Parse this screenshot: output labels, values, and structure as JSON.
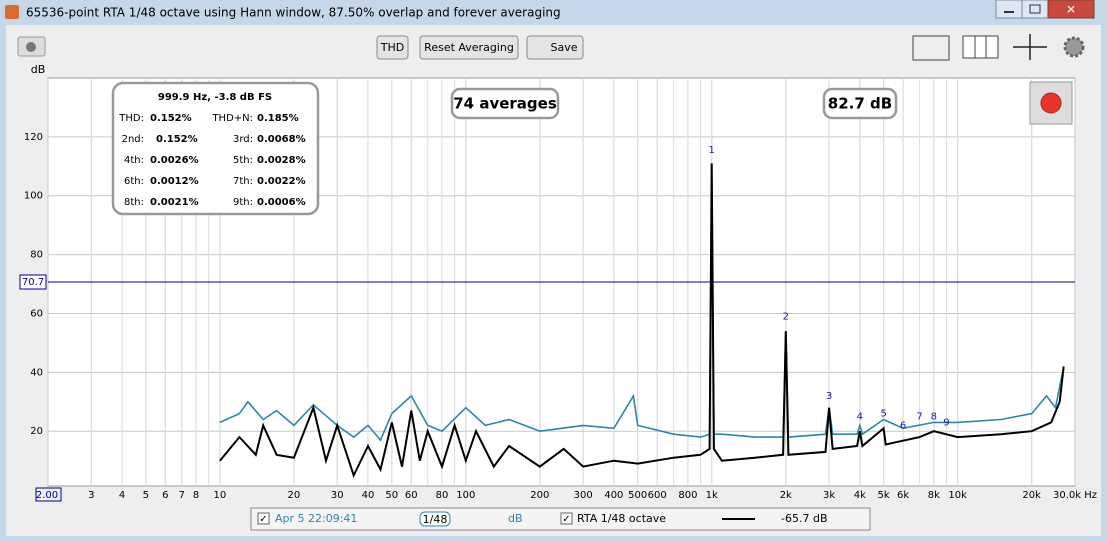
{
  "window": {
    "title": "65536-point RTA 1/48 octave using Hann window, 87.50% overlap and forever averaging"
  },
  "toolbar": {
    "buttons": [
      "THD",
      "Reset Averaging",
      "Save"
    ]
  },
  "overlays": {
    "thd_box": {
      "header": "999.9 Hz, -3.8 dB FS",
      "rows": [
        [
          "THD:",
          "0.152%",
          "THD+N:",
          "0.185%"
        ],
        [
          "2nd:",
          "0.152%",
          "3rd:",
          "0.0068%"
        ],
        [
          "4th:",
          "0.0026%",
          "5th:",
          "0.0028%"
        ],
        [
          "6th:",
          "0.0012%",
          "7th:",
          "0.0022%"
        ],
        [
          "8th:",
          "0.0021%",
          "9th:",
          "0.0006%"
        ]
      ]
    },
    "averages": "74 averages",
    "level": "82.7 dB"
  },
  "legend_bar": {
    "scale": "1/48",
    "unit": "dB",
    "reading": "-65.7 dB"
  },
  "chart_data": {
    "type": "line",
    "y_label": "dB",
    "log_x": true,
    "grid": true,
    "xlim": [
      2,
      30000
    ],
    "ylim": [
      1.4,
      140
    ],
    "xticks": [
      {
        "value": 2,
        "label": "2.00"
      },
      3,
      4,
      5,
      6,
      7,
      8,
      10,
      20,
      30,
      40,
      50,
      60,
      80,
      100,
      200,
      300,
      400,
      500,
      600,
      800,
      {
        "value": 1000,
        "label": "1k"
      },
      {
        "value": 2000,
        "label": "2k"
      },
      {
        "value": 3000,
        "label": "3k"
      },
      {
        "value": 4000,
        "label": "4k"
      },
      {
        "value": 5000,
        "label": "5k"
      },
      {
        "value": 6000,
        "label": "6k"
      },
      {
        "value": 8000,
        "label": "8k"
      },
      {
        "value": 10000,
        "label": "10k"
      },
      {
        "value": 20000,
        "label": "20k"
      },
      {
        "value": 30000,
        "label": "30.0k Hz"
      }
    ],
    "yticks": [
      20,
      40,
      60,
      80,
      100,
      120
    ],
    "reference_line": {
      "value": 70.7,
      "label": "70.7",
      "color": "#00008b"
    },
    "annotations": [
      {
        "text": "1",
        "x": 1000,
        "y": 115.6
      },
      {
        "text": "2",
        "x": 2000,
        "y": 59
      },
      {
        "text": "3",
        "x": 3000,
        "y": 32
      },
      {
        "text": "4",
        "x": 4000,
        "y": 25
      },
      {
        "text": "5",
        "x": 5000,
        "y": 26
      },
      {
        "text": "6",
        "x": 6000,
        "y": 22
      },
      {
        "text": "7",
        "x": 7000,
        "y": 25
      },
      {
        "text": "8",
        "x": 8000,
        "y": 25
      },
      {
        "text": "9",
        "x": 9000,
        "y": 23
      }
    ],
    "series": [
      {
        "name": "Apr 5 22:09:41",
        "color": "#2e86a6",
        "x": [
          10,
          12,
          13,
          15,
          17,
          20,
          24,
          30,
          35,
          40,
          45,
          50,
          60,
          70,
          80,
          100,
          120,
          150,
          200,
          300,
          400,
          480,
          500,
          700,
          900,
          980,
          1000,
          1020,
          1100,
          1500,
          1950,
          2000,
          2050,
          2900,
          3000,
          3100,
          3900,
          4000,
          4100,
          5000,
          6000,
          8000,
          10000,
          15000,
          20000,
          23000,
          25000,
          27000
        ],
        "values": [
          23,
          26,
          30,
          24,
          27,
          22,
          29,
          22,
          18,
          22,
          17,
          26,
          32,
          22,
          20,
          28,
          22,
          24,
          20,
          22,
          21,
          32,
          22,
          19,
          18,
          19,
          111,
          19,
          19,
          18,
          18,
          54,
          18,
          19,
          28,
          19,
          19,
          22,
          19,
          24,
          21,
          23,
          23,
          24,
          26,
          32,
          28,
          42
        ]
      },
      {
        "name": "RTA 1/48 octave",
        "color": "#000000",
        "x": [
          10,
          12,
          14,
          15,
          17,
          20,
          24,
          27,
          30,
          35,
          40,
          45,
          50,
          55,
          60,
          65,
          70,
          80,
          90,
          100,
          110,
          130,
          150,
          200,
          250,
          300,
          400,
          500,
          700,
          900,
          980,
          1000,
          1020,
          1100,
          1500,
          1950,
          2000,
          2050,
          2900,
          3000,
          3100,
          3900,
          4000,
          4100,
          5000,
          5100,
          7000,
          8000,
          10000,
          15000,
          20000,
          24000,
          26000,
          27000
        ],
        "values": [
          10,
          18,
          12,
          22,
          12,
          11,
          28,
          10,
          22,
          5,
          15,
          7,
          23,
          8,
          27,
          10,
          20,
          8,
          22,
          10,
          20,
          8,
          15,
          8,
          14,
          8,
          10,
          9,
          11,
          12,
          14,
          111,
          14,
          10,
          11,
          12,
          54,
          12,
          13,
          28,
          14,
          15,
          20,
          15,
          21,
          15.5,
          18,
          20,
          18,
          19,
          20,
          23,
          30,
          42
        ]
      }
    ]
  }
}
